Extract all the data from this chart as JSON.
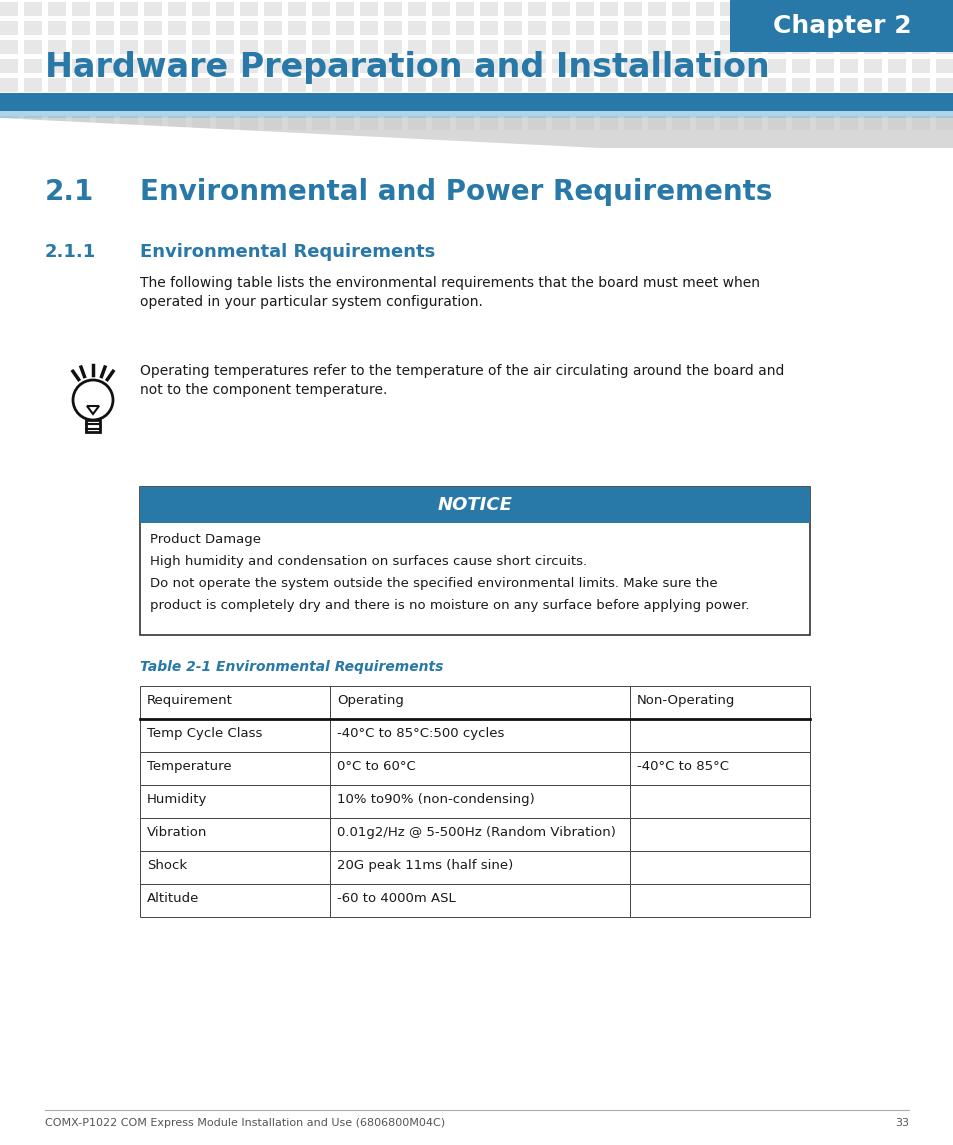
{
  "page_bg": "#ffffff",
  "chapter_box_bg": "#2878a8",
  "chapter_text": "Chapter 2",
  "chapter_text_color": "#ffffff",
  "title_text": "Hardware Preparation and Installation",
  "title_color": "#2878a8",
  "stripe_color": "#d8d8d8",
  "blue_bar_color": "#2878a8",
  "section_21_num": "2.1",
  "section_21_text": "Environmental and Power Requirements",
  "section_21_color": "#2878a8",
  "section_211_num": "2.1.1",
  "section_211_text": "Environmental Requirements",
  "section_211_color": "#2878a8",
  "body_text_color": "#1a1a1a",
  "body_lines": [
    "The following table lists the environmental requirements that the board must meet when",
    "operated in your particular system configuration."
  ],
  "tip_lines": [
    "Operating temperatures refer to the temperature of the air circulating around the board and",
    "not to the component temperature."
  ],
  "notice_header_bg": "#2878a8",
  "notice_header_text": "NOTICE",
  "notice_header_color": "#ffffff",
  "notice_body_lines": [
    "Product Damage",
    "High humidity and condensation on surfaces cause short circuits.",
    "Do not operate the system outside the specified environmental limits. Make sure the",
    "product is completely dry and there is no moisture on any surface before applying power."
  ],
  "table_caption": "Table 2-1 Environmental Requirements",
  "table_caption_color": "#2878a8",
  "table_headers": [
    "Requirement",
    "Operating",
    "Non-Operating"
  ],
  "table_rows": [
    [
      "Temp Cycle Class",
      "-40°C to 85°C:500 cycles",
      ""
    ],
    [
      "Temperature",
      "0°C to 60°C",
      "-40°C to 85°C"
    ],
    [
      "Humidity",
      "10% to90% (non-condensing)",
      ""
    ],
    [
      "Vibration",
      "0.01g2/Hz @ 5-500Hz (Random Vibration)",
      ""
    ],
    [
      "Shock",
      "20G peak 11ms (half sine)",
      ""
    ],
    [
      "Altitude",
      "-60 to 4000m ASL",
      ""
    ]
  ],
  "footer_text": "COMX-P1022 COM Express Module Installation and Use (6806800M04C)",
  "footer_page": "33",
  "footer_color": "#555555"
}
